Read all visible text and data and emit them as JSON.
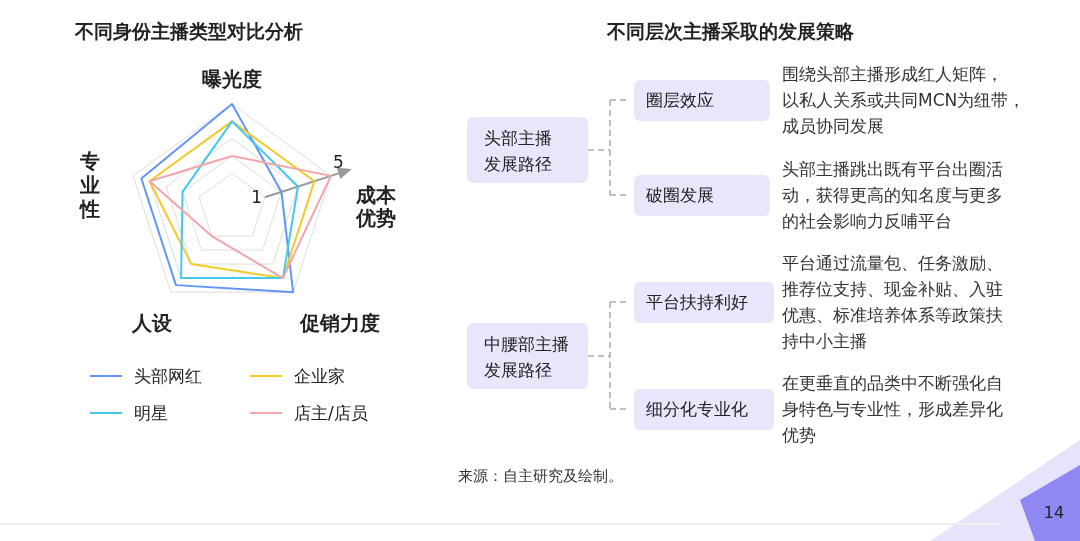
{
  "chart_data": [
    {
      "type": "radar",
      "title": "不同身份主播类型对比分析",
      "categories": [
        "曝光度",
        "成本优势",
        "促销力度",
        "人设",
        "专业性"
      ],
      "ylim": [
        -1,
        5
      ],
      "yticks": [
        1,
        5
      ],
      "grid": true,
      "legend": "bottom",
      "series": [
        {
          "name": "头部网红",
          "color": "#6495f5",
          "values": [
            5,
            2,
            5,
            4.5,
            4.5
          ]
        },
        {
          "name": "企业家",
          "color": "#f5c926",
          "values": [
            4,
            4,
            4,
            3,
            4
          ]
        },
        {
          "name": "明星",
          "color": "#45c8ee",
          "values": [
            4,
            3,
            4,
            4,
            2
          ]
        },
        {
          "name": "店主/店员",
          "color": "#f4a5aa",
          "values": [
            2,
            5,
            4,
            1,
            4
          ]
        }
      ]
    },
    {
      "type": "other",
      "title": "不同层次主播采取的发展策略",
      "annotations": [
        "头部主播发展路径",
        "圈层效应",
        "围绕头部主播形成红人矩阵，以私人关系或共同MCN为纽带，成员协同发展",
        "破圈发展",
        "头部主播跳出既有平台出圈活动，获得更高的知名度与更多的社会影响力反哺平台",
        "中腰部主播发展路径",
        "平台扶持利好",
        "平台通过流量包、任务激励、推荐位支持、现金补贴、入驻优惠、标准培养体系等政策扶持中小主播",
        "细分化专业化",
        "在更垂直的品类中不断强化自身特色与专业性，形成差异化优势",
        "来源：自主研究及绘制。",
        "14"
      ]
    }
  ]
}
